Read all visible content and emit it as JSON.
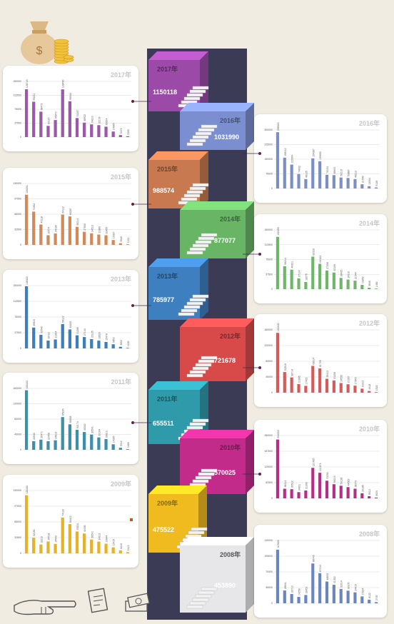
{
  "chart_data": [
    {
      "type": "bar",
      "title": "2017年",
      "total": "1150118",
      "color": "#9b59a8",
      "values": [
        128716,
        95231,
        68472,
        30125,
        45870,
        128490,
        96544,
        51287,
        38922,
        34210,
        32178,
        28004,
        14985,
        5472,
        2305
      ],
      "ylim": [
        0,
        150000
      ]
    },
    {
      "type": "bar",
      "title": "2016年",
      "total": "1031990",
      "color": "#7b8fc4",
      "values": [
        288540,
        158112,
        122364,
        74002,
        48125,
        154387,
        139652,
        70104,
        68431,
        56215,
        53880,
        48210,
        21550,
        12004,
        5126
      ],
      "ylim": [
        0,
        300000
      ]
    },
    {
      "type": "bar",
      "title": "2015年",
      "total": "988574",
      "color": "#d28a5b",
      "values": [
        106231,
        70452,
        43118,
        20574,
        24180,
        64112,
        60287,
        38214,
        27650,
        24512,
        21880,
        20455,
        10327,
        3540,
        1221
      ],
      "ylim": [
        0,
        130000
      ]
    },
    {
      "type": "bar",
      "title": "2014年",
      "total": "877077",
      "color": "#6fb56a",
      "values": [
        132450,
        58214,
        49321,
        27114,
        18275,
        82316,
        64102,
        47258,
        42106,
        28435,
        24310,
        21544,
        10852,
        3640,
        1482
      ],
      "ylim": [
        0,
        150000
      ]
    },
    {
      "type": "bar",
      "title": "2013年",
      "total": "785977",
      "color": "#3d7fba",
      "values": [
        148320,
        49815,
        32540,
        18722,
        21364,
        58112,
        45230,
        31280,
        27144,
        22105,
        18620,
        15478,
        9853,
        3852,
        1205
      ],
      "ylim": [
        0,
        150000
      ]
    },
    {
      "type": "bar",
      "title": "2012年",
      "total": "721678",
      "color": "#d65a5a",
      "values": [
        152400,
        52618,
        38714,
        21865,
        17433,
        68214,
        61725,
        35412,
        31208,
        24550,
        21367,
        17845,
        10212,
        4418,
        1522
      ],
      "ylim": [
        0,
        160000
      ]
    },
    {
      "type": "bar",
      "title": "2011年",
      "total": "655511",
      "color": "#3e8fa8",
      "values": [
        155222,
        22540,
        26471,
        22458,
        24813,
        85226,
        66358,
        52174,
        46322,
        39541,
        32164,
        28012,
        14335,
        5312,
        1680
      ],
      "ylim": [
        0,
        160000
      ]
    },
    {
      "type": "bar",
      "title": "2010年",
      "total": "570025",
      "color": "#b52f86",
      "values": [
        234002,
        38214,
        36512,
        24811,
        31260,
        121425,
        101874,
        70253,
        56214,
        50128,
        44562,
        38270,
        20186,
        8512,
        3024
      ],
      "ylim": [
        0,
        250000
      ]
    },
    {
      "type": "bar",
      "title": "2009年",
      "total": "475522",
      "color": "#e6b229",
      "values": [
        120240,
        32180,
        18212,
        24518,
        19542,
        74120,
        60412,
        45231,
        41006,
        28541,
        24312,
        19844,
        12415,
        6210,
        2413
      ],
      "ylim": [
        0,
        130000
      ]
    },
    {
      "type": "bar",
      "title": "2008年",
      "total": "453890",
      "color": "#6a86bd",
      "values": [
        119526,
        28541,
        20712,
        14258,
        18452,
        88745,
        67214,
        48525,
        41302,
        32014,
        28105,
        24410,
        15324,
        8122,
        2705
      ],
      "ylim": [
        0,
        140000
      ]
    }
  ],
  "steps": [
    {
      "year": "2017年",
      "total": "1150118",
      "color": "#9b4aa8"
    },
    {
      "year": "2016年",
      "total": "1031990",
      "color": "#7b8fd0"
    },
    {
      "year": "2015年",
      "total": "988574",
      "color": "#c8794f"
    },
    {
      "year": "2014年",
      "total": "877077",
      "color": "#68b565"
    },
    {
      "year": "2013年",
      "total": "785977",
      "color": "#3e7fc0"
    },
    {
      "year": "2012年",
      "total": "721678",
      "color": "#d84a4a"
    },
    {
      "year": "2011年",
      "total": "655511",
      "color": "#2e9aaa"
    },
    {
      "year": "2010年",
      "total": "570025",
      "color": "#c22b8a"
    },
    {
      "year": "2009年",
      "total": "475522",
      "color": "#efbb1f"
    },
    {
      "year": "2008年",
      "total": "453890",
      "color": "#e7e7ea"
    }
  ]
}
